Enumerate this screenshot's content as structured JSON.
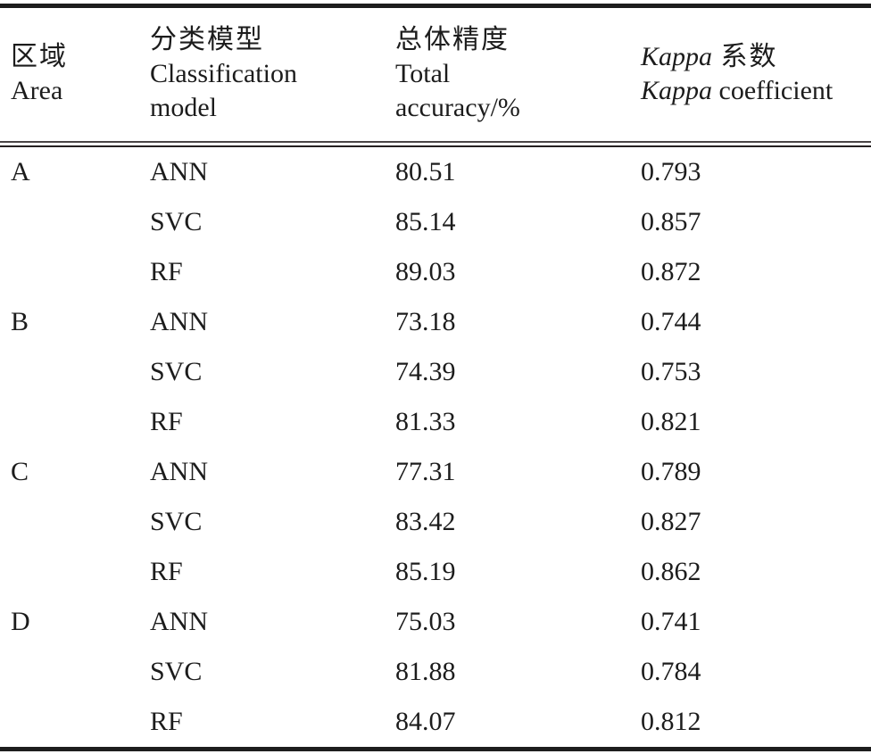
{
  "table": {
    "header": {
      "area": {
        "zh": "区域",
        "en": "Area"
      },
      "model": {
        "zh": "分类模型",
        "en_line1": "Classification",
        "en_line2": "model"
      },
      "accuracy": {
        "zh": "总体精度",
        "en_line1": "Total",
        "en_line2": "accuracy/%"
      },
      "kappa": {
        "zh_italic": "Kappa",
        "zh_rest": " 系数",
        "en_italic": "Kappa",
        "en_rest": " coefficient"
      }
    },
    "rows": [
      {
        "area": "A",
        "model": "ANN",
        "accuracy": "80.51",
        "kappa": "0.793"
      },
      {
        "area": "",
        "model": "SVC",
        "accuracy": "85.14",
        "kappa": "0.857"
      },
      {
        "area": "",
        "model": "RF",
        "accuracy": "89.03",
        "kappa": "0.872"
      },
      {
        "area": "B",
        "model": "ANN",
        "accuracy": "73.18",
        "kappa": "0.744"
      },
      {
        "area": "",
        "model": "SVC",
        "accuracy": "74.39",
        "kappa": "0.753"
      },
      {
        "area": "",
        "model": "RF",
        "accuracy": "81.33",
        "kappa": "0.821"
      },
      {
        "area": "C",
        "model": "ANN",
        "accuracy": "77.31",
        "kappa": "0.789"
      },
      {
        "area": "",
        "model": "SVC",
        "accuracy": "83.42",
        "kappa": "0.827"
      },
      {
        "area": "",
        "model": "RF",
        "accuracy": "85.19",
        "kappa": "0.862"
      },
      {
        "area": "D",
        "model": "ANN",
        "accuracy": "75.03",
        "kappa": "0.741"
      },
      {
        "area": "",
        "model": "SVC",
        "accuracy": "81.88",
        "kappa": "0.784"
      },
      {
        "area": "",
        "model": "RF",
        "accuracy": "84.07",
        "kappa": "0.812"
      }
    ]
  }
}
